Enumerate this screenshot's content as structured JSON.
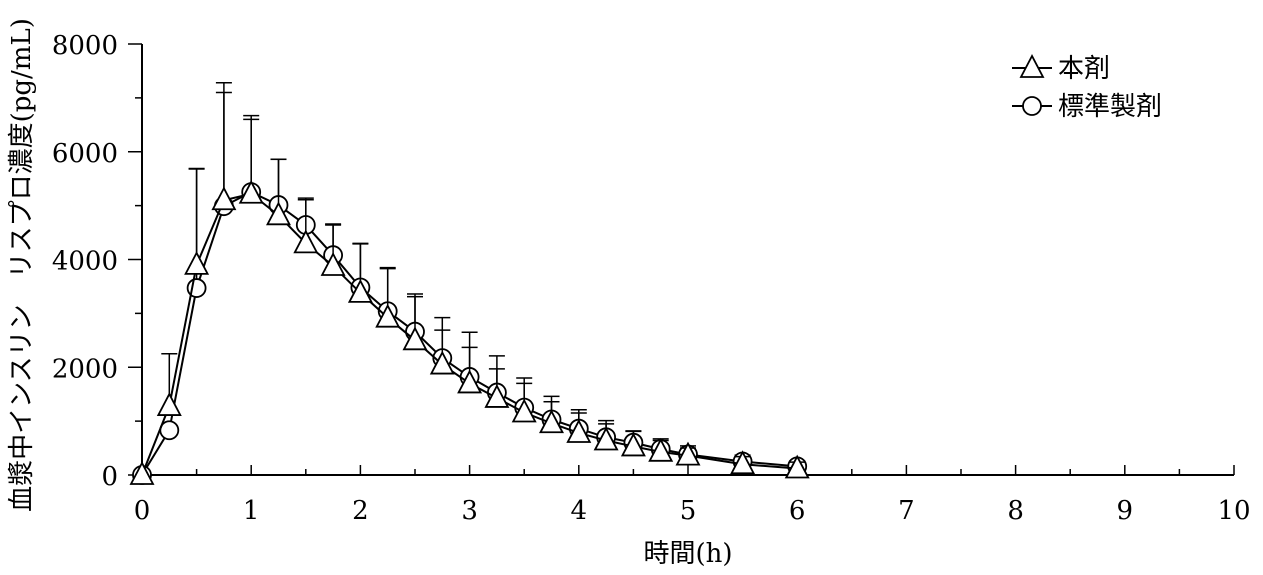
{
  "chart_data": {
    "type": "line",
    "title": "",
    "xlabel": "時間(h)",
    "ylabel": "血漿中インスリン　リスプロ濃度(pg/mL)",
    "xlim": [
      0,
      10
    ],
    "ylim": [
      0,
      8000
    ],
    "x_ticks": [
      "0",
      "1",
      "2",
      "3",
      "4",
      "5",
      "6",
      "7",
      "8",
      "9",
      "10"
    ],
    "y_ticks": [
      "0",
      "2000",
      "4000",
      "6000",
      "8000"
    ],
    "grid": false,
    "legend_position": "top-right",
    "error_bars": "upper",
    "series": [
      {
        "name": "本剤",
        "marker": "triangle",
        "x": [
          0,
          0.25,
          0.5,
          0.75,
          1,
          1.25,
          1.5,
          1.75,
          2,
          2.25,
          2.5,
          2.75,
          3,
          3.25,
          3.5,
          3.75,
          4,
          4.25,
          4.5,
          4.75,
          5,
          5.5,
          6
        ],
        "y": [
          0,
          1280,
          3900,
          5100,
          5220,
          4820,
          4300,
          3880,
          3380,
          2920,
          2500,
          2050,
          1700,
          1430,
          1160,
          960,
          780,
          640,
          530,
          430,
          360,
          200,
          120
        ],
        "error": [
          0,
          970,
          1790,
          2180,
          1380,
          1040,
          840,
          780,
          910,
          930,
          860,
          870,
          950,
          780,
          640,
          500,
          430,
          370,
          280,
          210,
          140,
          140,
          120
        ]
      },
      {
        "name": "標準製剤",
        "marker": "circle",
        "x": [
          0,
          0.25,
          0.5,
          0.75,
          1,
          1.25,
          1.5,
          1.75,
          2,
          2.25,
          2.5,
          2.75,
          3,
          3.25,
          3.5,
          3.75,
          4,
          4.25,
          4.5,
          4.75,
          5,
          5.5,
          6
        ],
        "y": [
          0,
          830,
          3470,
          4990,
          5250,
          5010,
          4640,
          4080,
          3480,
          3040,
          2660,
          2170,
          1820,
          1530,
          1250,
          1030,
          860,
          700,
          600,
          480,
          380,
          250,
          160
        ],
        "error": [
          0,
          0,
          2210,
          2110,
          1420,
          850,
          470,
          560,
          820,
          790,
          650,
          520,
          550,
          440,
          450,
          330,
          290,
          250,
          220,
          190,
          160,
          120,
          100
        ]
      }
    ]
  }
}
